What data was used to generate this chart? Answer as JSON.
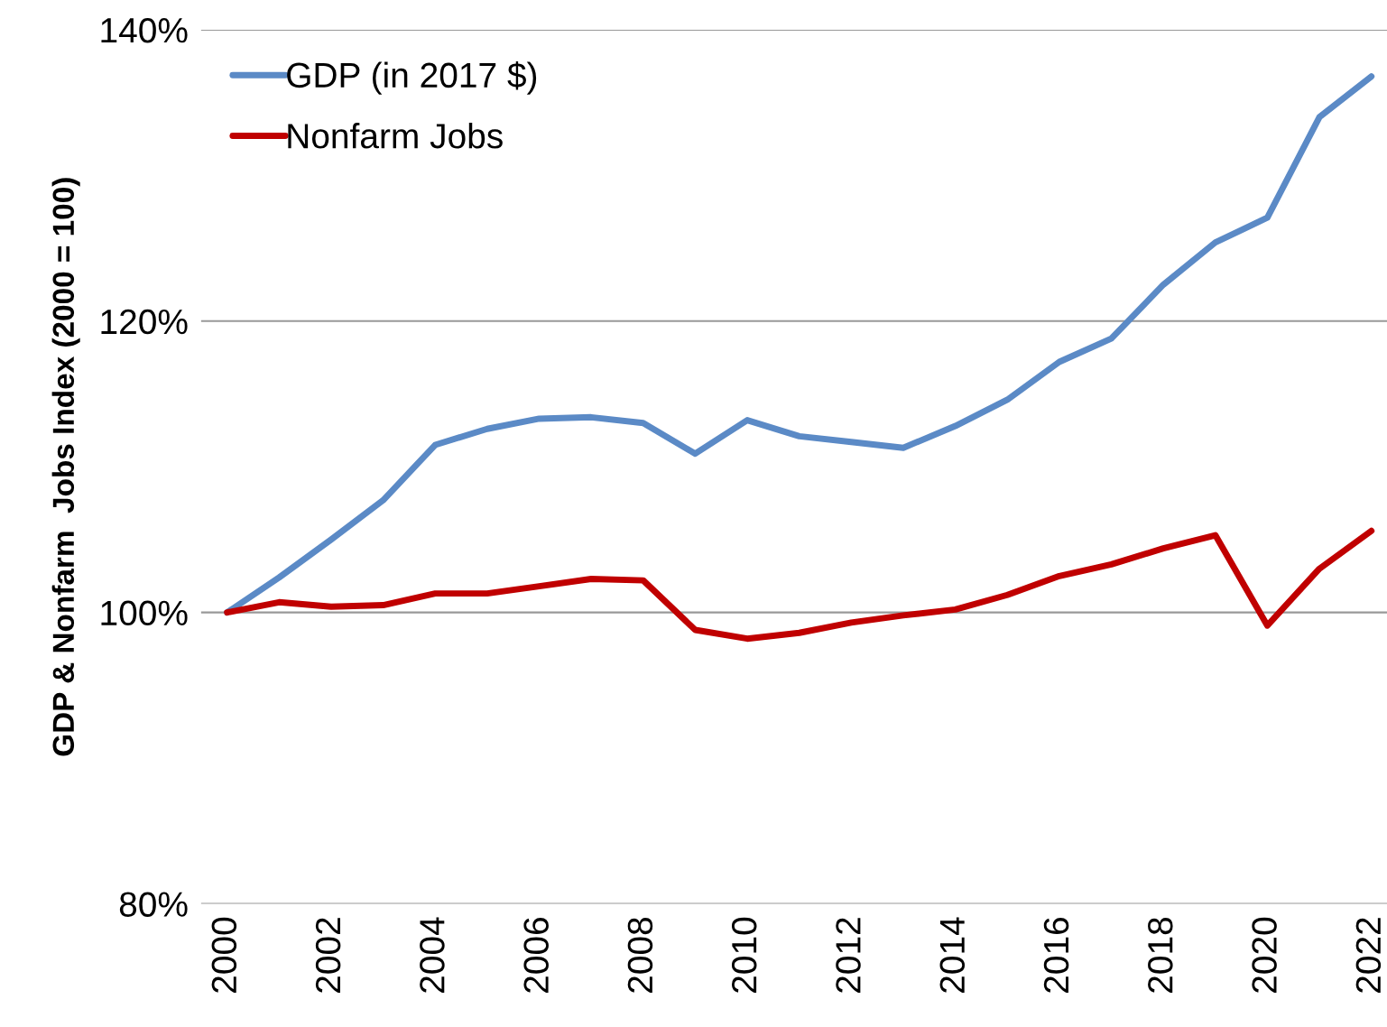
{
  "chart_data": {
    "type": "line",
    "ylabel": "GDP & Nonfarm  Jobs Index (2000 = 100)",
    "x": [
      2000,
      2001,
      2002,
      2003,
      2004,
      2005,
      2006,
      2007,
      2008,
      2009,
      2010,
      2011,
      2012,
      2013,
      2014,
      2015,
      2016,
      2017,
      2018,
      2019,
      2020,
      2021,
      2022
    ],
    "series": [
      {
        "name": "GDP (in 2017 $)",
        "color": "#5b8ac6",
        "values": [
          100,
          102.4,
          105.0,
          107.7,
          111.5,
          112.6,
          113.3,
          113.4,
          113.0,
          110.9,
          113.2,
          112.1,
          111.7,
          111.3,
          112.8,
          114.6,
          117.2,
          118.8,
          122.5,
          125.4,
          127.1,
          134.0,
          136.8
        ]
      },
      {
        "name": "Nonfarm Jobs",
        "color": "#c00000",
        "values": [
          100,
          100.7,
          100.4,
          100.5,
          101.3,
          101.3,
          101.8,
          102.3,
          102.2,
          98.8,
          98.2,
          98.6,
          99.3,
          99.8,
          100.2,
          101.2,
          102.5,
          103.3,
          104.4,
          105.3,
          99.1,
          103.0,
          105.6
        ]
      }
    ],
    "xlim": [
      1999.5,
      2022.3
    ],
    "xticks": [
      2000,
      2002,
      2004,
      2006,
      2008,
      2010,
      2012,
      2014,
      2016,
      2018,
      2020,
      2022
    ],
    "ylim": [
      80,
      140
    ],
    "yticks": [
      {
        "value": 80,
        "label": "80%"
      },
      {
        "value": 100,
        "label": "100%"
      },
      {
        "value": 120,
        "label": "120%"
      },
      {
        "value": 140,
        "label": "140%"
      }
    ],
    "grid": "y",
    "legend": "top left",
    "marker": "none",
    "line_style": "solid"
  }
}
